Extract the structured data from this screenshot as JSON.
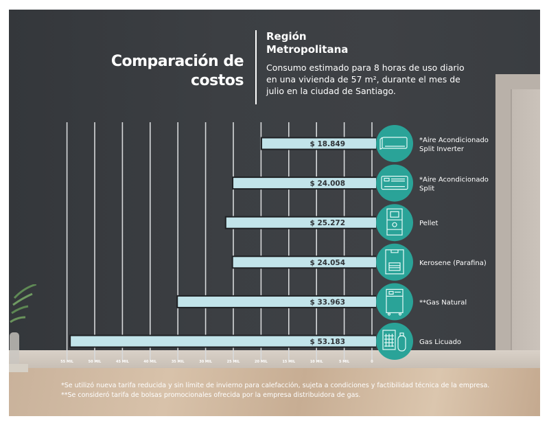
{
  "header": {
    "title_line1": "Comparación de",
    "title_line2": "costos",
    "region_line1": "Región",
    "region_line2": "Metropolitana",
    "description_line1": "Consumo estimado para 8 horas de uso diario",
    "description_line2": "en una vivienda de 57 m², durante el mes de",
    "description_line3": "julio en la ciudad de Santiago."
  },
  "footnotes": {
    "note1": "*Se utilizó nueva tarifa reducida y sin límite de invierno para calefacción, sujeta a condiciones y factibilidad técnica de la empresa.",
    "note2": "**Se consideró tarifa de bolsas promocionales ofrecida por la empresa distribuidora de gas."
  },
  "colors": {
    "wall": "#3a3d41",
    "bar": "#c2e4ea",
    "icon_circle": "#2aa398",
    "text": "#ffffff"
  },
  "chart_data": {
    "type": "bar",
    "orientation": "horizontal",
    "direction": "right-to-left",
    "title": "Comparación de costos",
    "subtitle": "Región Metropolitana",
    "xlabel": "",
    "ylabel": "",
    "xlim": [
      0,
      55000
    ],
    "grid": true,
    "x_ticks": [
      55000,
      50000,
      45000,
      40000,
      35000,
      30000,
      25000,
      20000,
      15000,
      10000,
      5000,
      0
    ],
    "x_tick_labels": [
      "55 MIL",
      "50 MIL",
      "45 MIL",
      "40 MIL",
      "35 MIL",
      "30 MIL",
      "25 MIL",
      "20 MIL",
      "15 MIL",
      "10 MIL",
      "5 MIL",
      "0"
    ],
    "categories": [
      {
        "label_line1": "*Aire Acondicionado",
        "label_line2": "Split Inverter",
        "icon": "split-inverter-ac-icon"
      },
      {
        "label_line1": "*Aire Acondicionado",
        "label_line2": "Split",
        "icon": "split-ac-icon"
      },
      {
        "label_line1": "Pellet",
        "label_line2": "",
        "icon": "pellet-stove-icon"
      },
      {
        "label_line1": "Kerosene (Parafina)",
        "label_line2": "",
        "icon": "kerosene-heater-icon"
      },
      {
        "label_line1": "**Gas Natural",
        "label_line2": "",
        "icon": "gas-heater-icon"
      },
      {
        "label_line1": "Gas Licuado",
        "label_line2": "",
        "icon": "lpg-heater-icon"
      }
    ],
    "values": [
      18849,
      24008,
      25272,
      24054,
      33963,
      53183
    ],
    "value_labels": [
      "$ 18.849",
      "$ 24.008",
      "$ 25.272",
      "$ 24.054",
      "$ 33.963",
      "$ 53.183"
    ],
    "currency": "CLP"
  }
}
